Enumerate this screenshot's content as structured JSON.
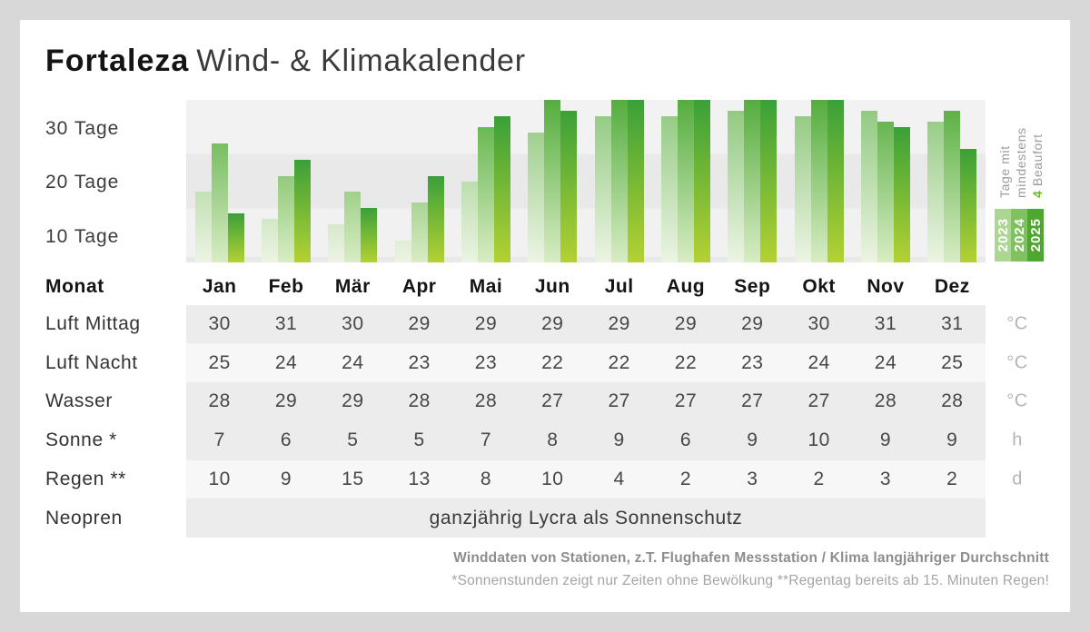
{
  "title": {
    "brand": "Fortaleza",
    "rest": "Wind- & Klimakalender"
  },
  "chart_data": {
    "type": "bar",
    "title": "Tage mit mindestens 4 Beaufort",
    "categories": [
      "Jan",
      "Feb",
      "Mär",
      "Apr",
      "Mai",
      "Jun",
      "Jul",
      "Aug",
      "Sep",
      "Okt",
      "Nov",
      "Dez"
    ],
    "series": [
      {
        "name": "2023",
        "color_top": "#8cc77b",
        "color_bottom": "#ecf4e3",
        "values": [
          13,
          8,
          7,
          4,
          15,
          24,
          27,
          27,
          28,
          27,
          28,
          26
        ]
      },
      {
        "name": "2024",
        "color_top": "#55ad3e",
        "color_bottom": "#d8ecc4",
        "values": [
          22,
          16,
          13,
          11,
          25,
          30,
          30,
          30,
          30,
          30,
          26,
          28
        ]
      },
      {
        "name": "2025",
        "color_top": "#3aa038",
        "color_bottom": "#b4d133",
        "values": [
          9,
          19,
          10,
          16,
          27,
          28,
          30,
          30,
          30,
          30,
          25,
          21
        ]
      }
    ],
    "ylim": [
      0,
      30
    ],
    "ylabel": "Tage",
    "y_ticks": [
      "30 Tage",
      "20 Tage",
      "10 Tage"
    ],
    "grid": "horizontal-bands",
    "legend": {
      "position": "right",
      "lines": [
        "Tage mit",
        "mindestens"
      ],
      "accent": "4",
      "accent_rest": " Beaufort",
      "years": [
        {
          "label": "2023",
          "color": "#abd792"
        },
        {
          "label": "2024",
          "color": "#80c160"
        },
        {
          "label": "2025",
          "color": "#4ea72e"
        }
      ]
    }
  },
  "table": {
    "month_header": {
      "label": "Monat",
      "months": [
        "Jan",
        "Feb",
        "Mär",
        "Apr",
        "Mai",
        "Jun",
        "Jul",
        "Aug",
        "Sep",
        "Okt",
        "Nov",
        "Dez"
      ]
    },
    "rows": [
      {
        "label": "Luft Mittag",
        "unit": "°C",
        "shade": "dark",
        "values": [
          "30",
          "31",
          "30",
          "29",
          "29",
          "29",
          "29",
          "29",
          "29",
          "30",
          "31",
          "31"
        ]
      },
      {
        "label": "Luft Nacht",
        "unit": "°C",
        "shade": "light",
        "values": [
          "25",
          "24",
          "24",
          "23",
          "23",
          "22",
          "22",
          "22",
          "23",
          "24",
          "24",
          "25"
        ]
      },
      {
        "label": "Wasser",
        "unit": "°C",
        "shade": "dark",
        "values": [
          "28",
          "29",
          "29",
          "28",
          "28",
          "27",
          "27",
          "27",
          "27",
          "27",
          "28",
          "28"
        ]
      },
      {
        "label": "Sonne *",
        "unit": "h",
        "shade": "dark",
        "values": [
          "7",
          "6",
          "5",
          "5",
          "7",
          "8",
          "9",
          "6",
          "9",
          "10",
          "9",
          "9"
        ]
      },
      {
        "label": "Regen **",
        "unit": "d",
        "shade": "light",
        "values": [
          "10",
          "9",
          "15",
          "13",
          "8",
          "10",
          "4",
          "2",
          "3",
          "2",
          "3",
          "2"
        ]
      },
      {
        "label": "Neopren",
        "unit": "",
        "shade": "dark",
        "span_text": "ganzjährig Lycra als Sonnenschutz"
      }
    ]
  },
  "footer": {
    "line1": "Winddaten von Stationen, z.T. Flughafen Messstation / Klima langjähriger Durchschnitt",
    "line2": "*Sonnenstunden zeigt nur Zeiten ohne Bewölkung  **Regentag bereits ab 15. Minuten Regen!"
  }
}
